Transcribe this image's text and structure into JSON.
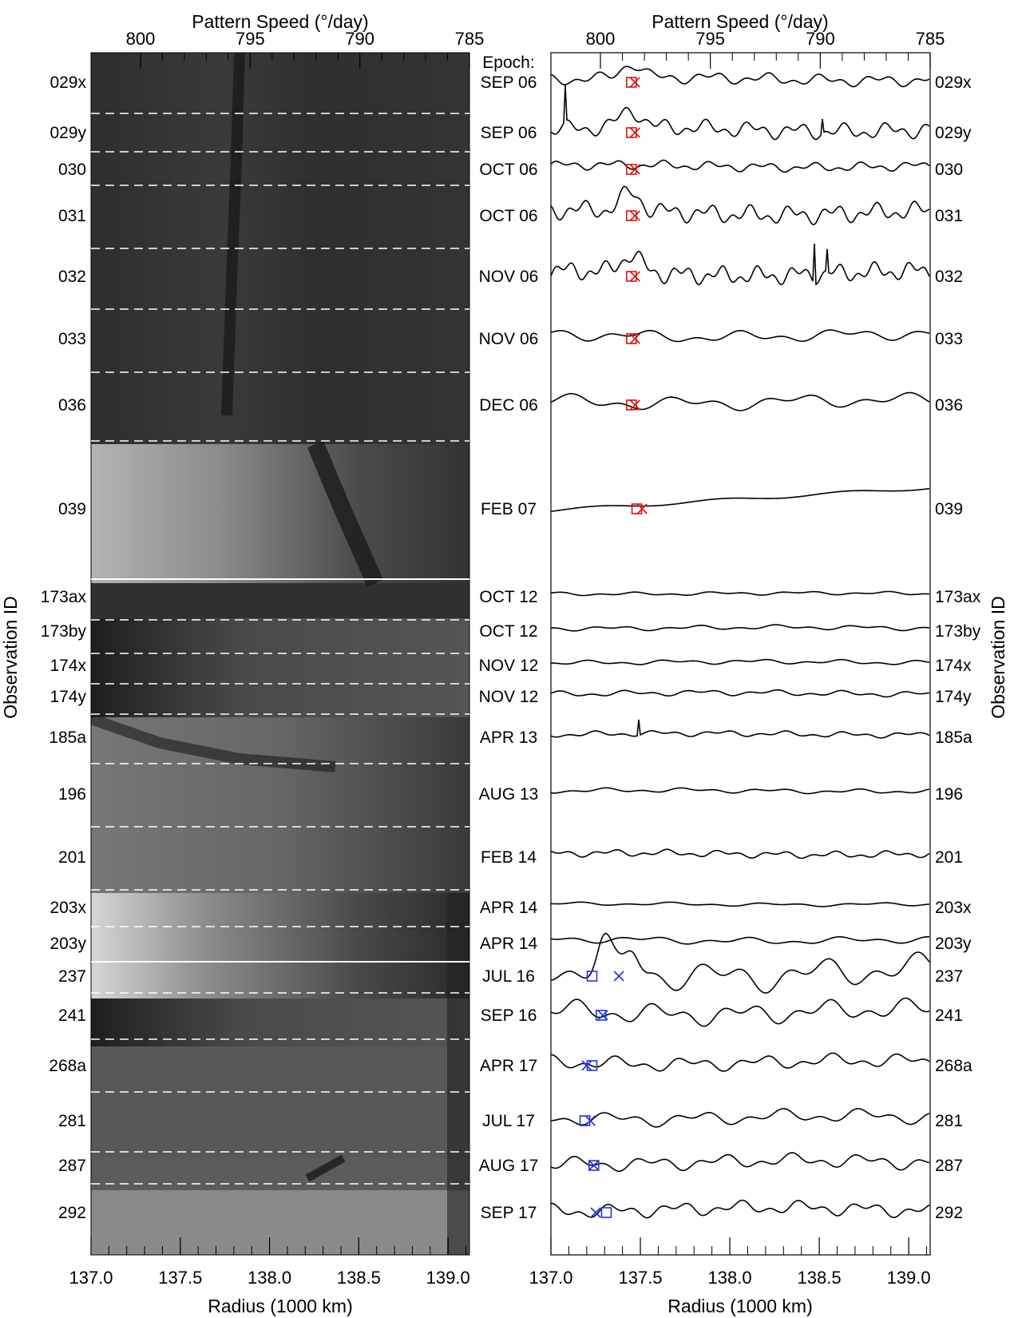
{
  "chart_data": [
    {
      "type": "heatmap",
      "xlabel": "Radius (1000 km)",
      "top_axis_label": "Pattern Speed (°/day)",
      "x_range": [
        137.0,
        139.12
      ],
      "x_ticks": [
        "137.0",
        "137.5",
        "138.0",
        "138.5",
        "139.0"
      ],
      "x_tick_values": [
        137.0,
        137.5,
        138.0,
        138.5,
        139.0
      ],
      "top_ticks": [
        "800",
        "795",
        "790",
        "785"
      ],
      "top_tick_values": [
        800,
        795,
        790,
        785
      ],
      "ylabel": "Observation ID",
      "epoch_header": "Epoch:",
      "colormap": "grayscale"
    },
    {
      "type": "line",
      "xlabel": "Radius (1000 km)",
      "top_axis_label": "Pattern Speed (°/day)",
      "x_range": [
        137.0,
        139.12
      ],
      "x_ticks": [
        "137.0",
        "137.5",
        "138.0",
        "138.5",
        "139.0"
      ],
      "x_tick_values": [
        137.0,
        137.5,
        138.0,
        138.5,
        139.0
      ],
      "top_ticks": [
        "800",
        "795",
        "790",
        "785"
      ],
      "top_tick_values": [
        800,
        795,
        790,
        785
      ],
      "ylabel": "Observation ID",
      "marker_colors": {
        "early": "#dd1111",
        "late": "#2233dd"
      },
      "observations": [
        {
          "id": "029x",
          "epoch": "SEP 06",
          "square_r": 137.45,
          "x_r": 137.47
        },
        {
          "id": "029y",
          "epoch": "SEP 06",
          "square_r": 137.45,
          "x_r": 137.47
        },
        {
          "id": "030",
          "epoch": "OCT 06",
          "square_r": 137.45,
          "x_r": 137.47
        },
        {
          "id": "031",
          "epoch": "OCT 06",
          "square_r": 137.45,
          "x_r": 137.47
        },
        {
          "id": "032",
          "epoch": "NOV 06",
          "square_r": 137.45,
          "x_r": 137.47
        },
        {
          "id": "033",
          "epoch": "NOV 06",
          "square_r": 137.45,
          "x_r": 137.47
        },
        {
          "id": "036",
          "epoch": "DEC 06",
          "square_r": 137.45,
          "x_r": 137.47
        },
        {
          "id": "039",
          "epoch": "FEB 07",
          "square_r": 137.48,
          "x_r": 137.51
        },
        {
          "id": "173ax",
          "epoch": "OCT 12"
        },
        {
          "id": "173by",
          "epoch": "OCT 12"
        },
        {
          "id": "174x",
          "epoch": "NOV 12"
        },
        {
          "id": "174y",
          "epoch": "NOV 12"
        },
        {
          "id": "185a",
          "epoch": "APR 13"
        },
        {
          "id": "196",
          "epoch": "AUG 13"
        },
        {
          "id": "201",
          "epoch": "FEB 14"
        },
        {
          "id": "203x",
          "epoch": "APR 14"
        },
        {
          "id": "203y",
          "epoch": "APR 14"
        },
        {
          "id": "237",
          "epoch": "JUL 16",
          "square_r": 137.23,
          "x_r": 137.38
        },
        {
          "id": "241",
          "epoch": "SEP 16",
          "square_r": 137.28,
          "x_r": 137.29
        },
        {
          "id": "268a",
          "epoch": "APR 17",
          "square_r": 137.23,
          "x_r": 137.2
        },
        {
          "id": "281",
          "epoch": "JUL 17",
          "square_r": 137.19,
          "x_r": 137.22
        },
        {
          "id": "287",
          "epoch": "AUG 17",
          "square_r": 137.24,
          "x_r": 137.24
        },
        {
          "id": "292",
          "epoch": "SEP 17",
          "square_r": 137.31,
          "x_r": 137.25
        }
      ]
    }
  ]
}
